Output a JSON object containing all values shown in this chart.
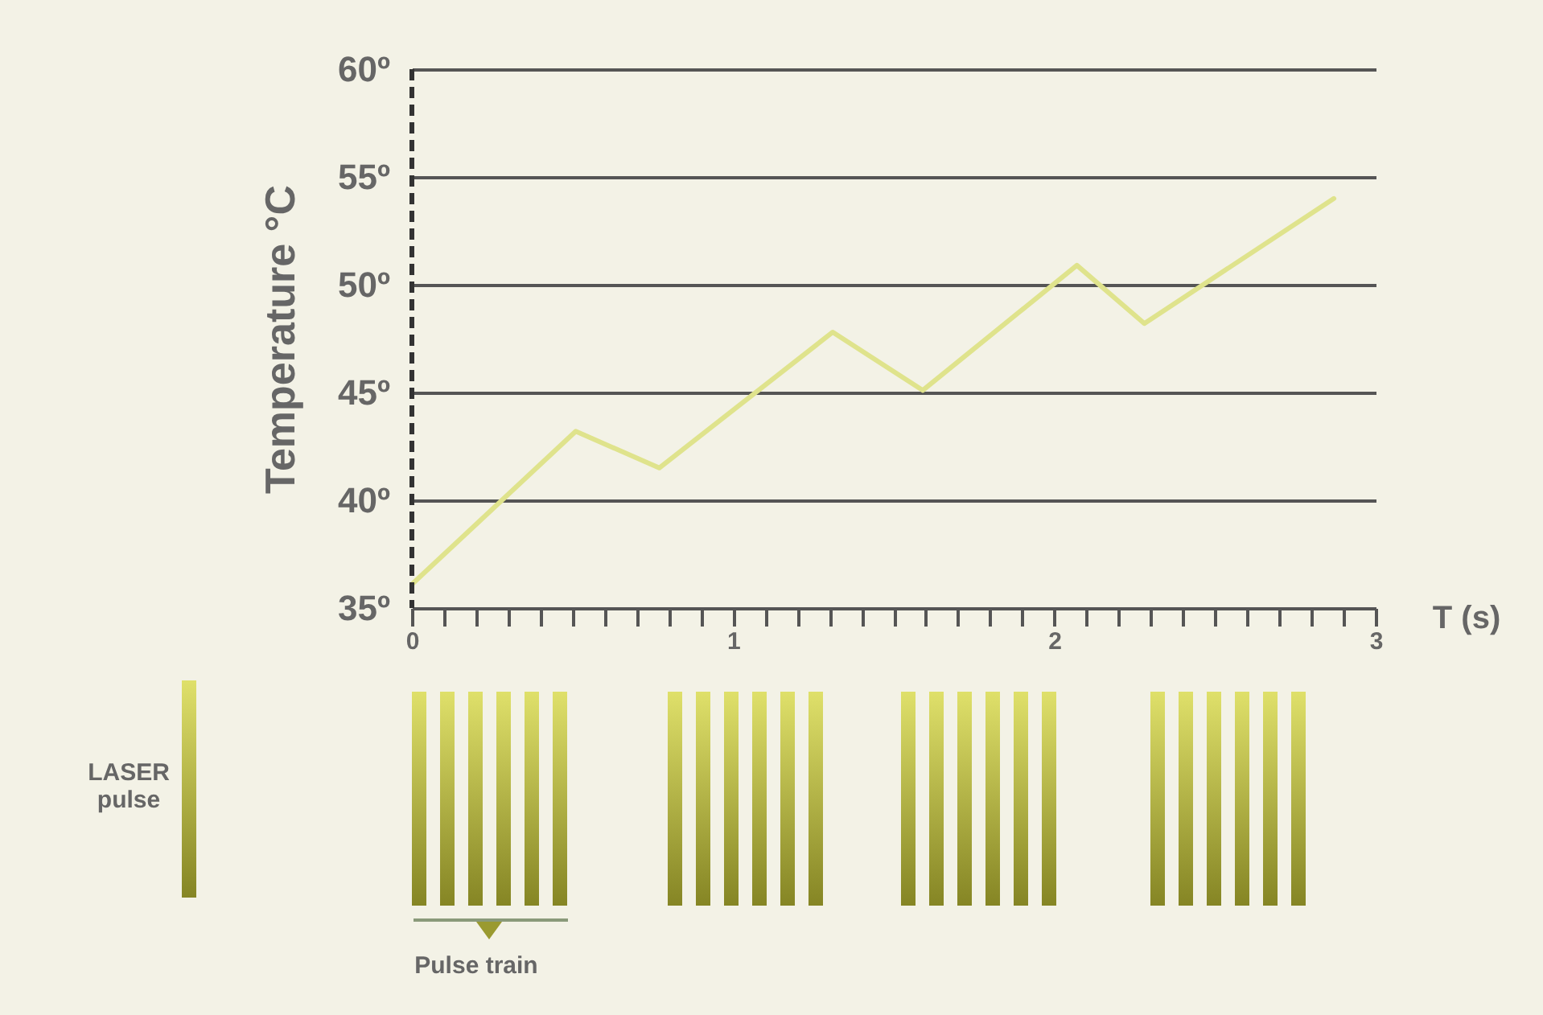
{
  "chart_data": {
    "type": "line",
    "ylabel": "Temperature °C",
    "xlabel": "T (s)",
    "x": [
      0,
      0.51,
      0.77,
      1.31,
      1.59,
      2.07,
      2.28,
      2.87
    ],
    "series": [
      {
        "color": "#dfe38c",
        "values": [
          36.1,
          43.2,
          41.5,
          47.8,
          45.1,
          50.9,
          48.2,
          54.0
        ]
      }
    ],
    "xlim": [
      0,
      3
    ],
    "xticks": [
      0,
      {
        "value": 0.1,
        "label": null
      },
      {
        "value": 0.2,
        "label": null
      },
      {
        "value": 0.3,
        "label": null
      },
      {
        "value": 0.4,
        "label": null
      },
      {
        "value": 0.5,
        "label": null
      },
      {
        "value": 0.6,
        "label": null
      },
      {
        "value": 0.7,
        "label": null
      },
      {
        "value": 0.8,
        "label": null
      },
      {
        "value": 0.9,
        "label": null
      },
      1,
      {
        "value": 1.1,
        "label": null
      },
      {
        "value": 1.2,
        "label": null
      },
      {
        "value": 1.3,
        "label": null
      },
      {
        "value": 1.4,
        "label": null
      },
      {
        "value": 1.5,
        "label": null
      },
      {
        "value": 1.6,
        "label": null
      },
      {
        "value": 1.7,
        "label": null
      },
      {
        "value": 1.8,
        "label": null
      },
      {
        "value": 1.9,
        "label": null
      },
      2,
      {
        "value": 2.1,
        "label": null
      },
      {
        "value": 2.2,
        "label": null
      },
      {
        "value": 2.3,
        "label": null
      },
      {
        "value": 2.4,
        "label": null
      },
      {
        "value": 2.5,
        "label": null
      },
      {
        "value": 2.6,
        "label": null
      },
      {
        "value": 2.7,
        "label": null
      },
      {
        "value": 2.8,
        "label": null
      },
      {
        "value": 2.9,
        "label": null
      },
      3
    ],
    "ylim": [
      35,
      60
    ],
    "yticks": [
      {
        "value": 35,
        "label": "35º"
      },
      {
        "value": 40,
        "label": "40º"
      },
      {
        "value": 45,
        "label": "45º"
      },
      {
        "value": 50,
        "label": "50º"
      },
      {
        "value": 55,
        "label": "55º"
      },
      {
        "value": 60,
        "label": "60º"
      }
    ],
    "grid": "y",
    "marker": "none",
    "line_style": "solid",
    "ref_lines": [
      {
        "axis": "x",
        "value": 0,
        "color": "#333333",
        "line_style": "dashed"
      }
    ],
    "annotations": [
      "LASER pulse",
      "Pulse train"
    ]
  }
}
